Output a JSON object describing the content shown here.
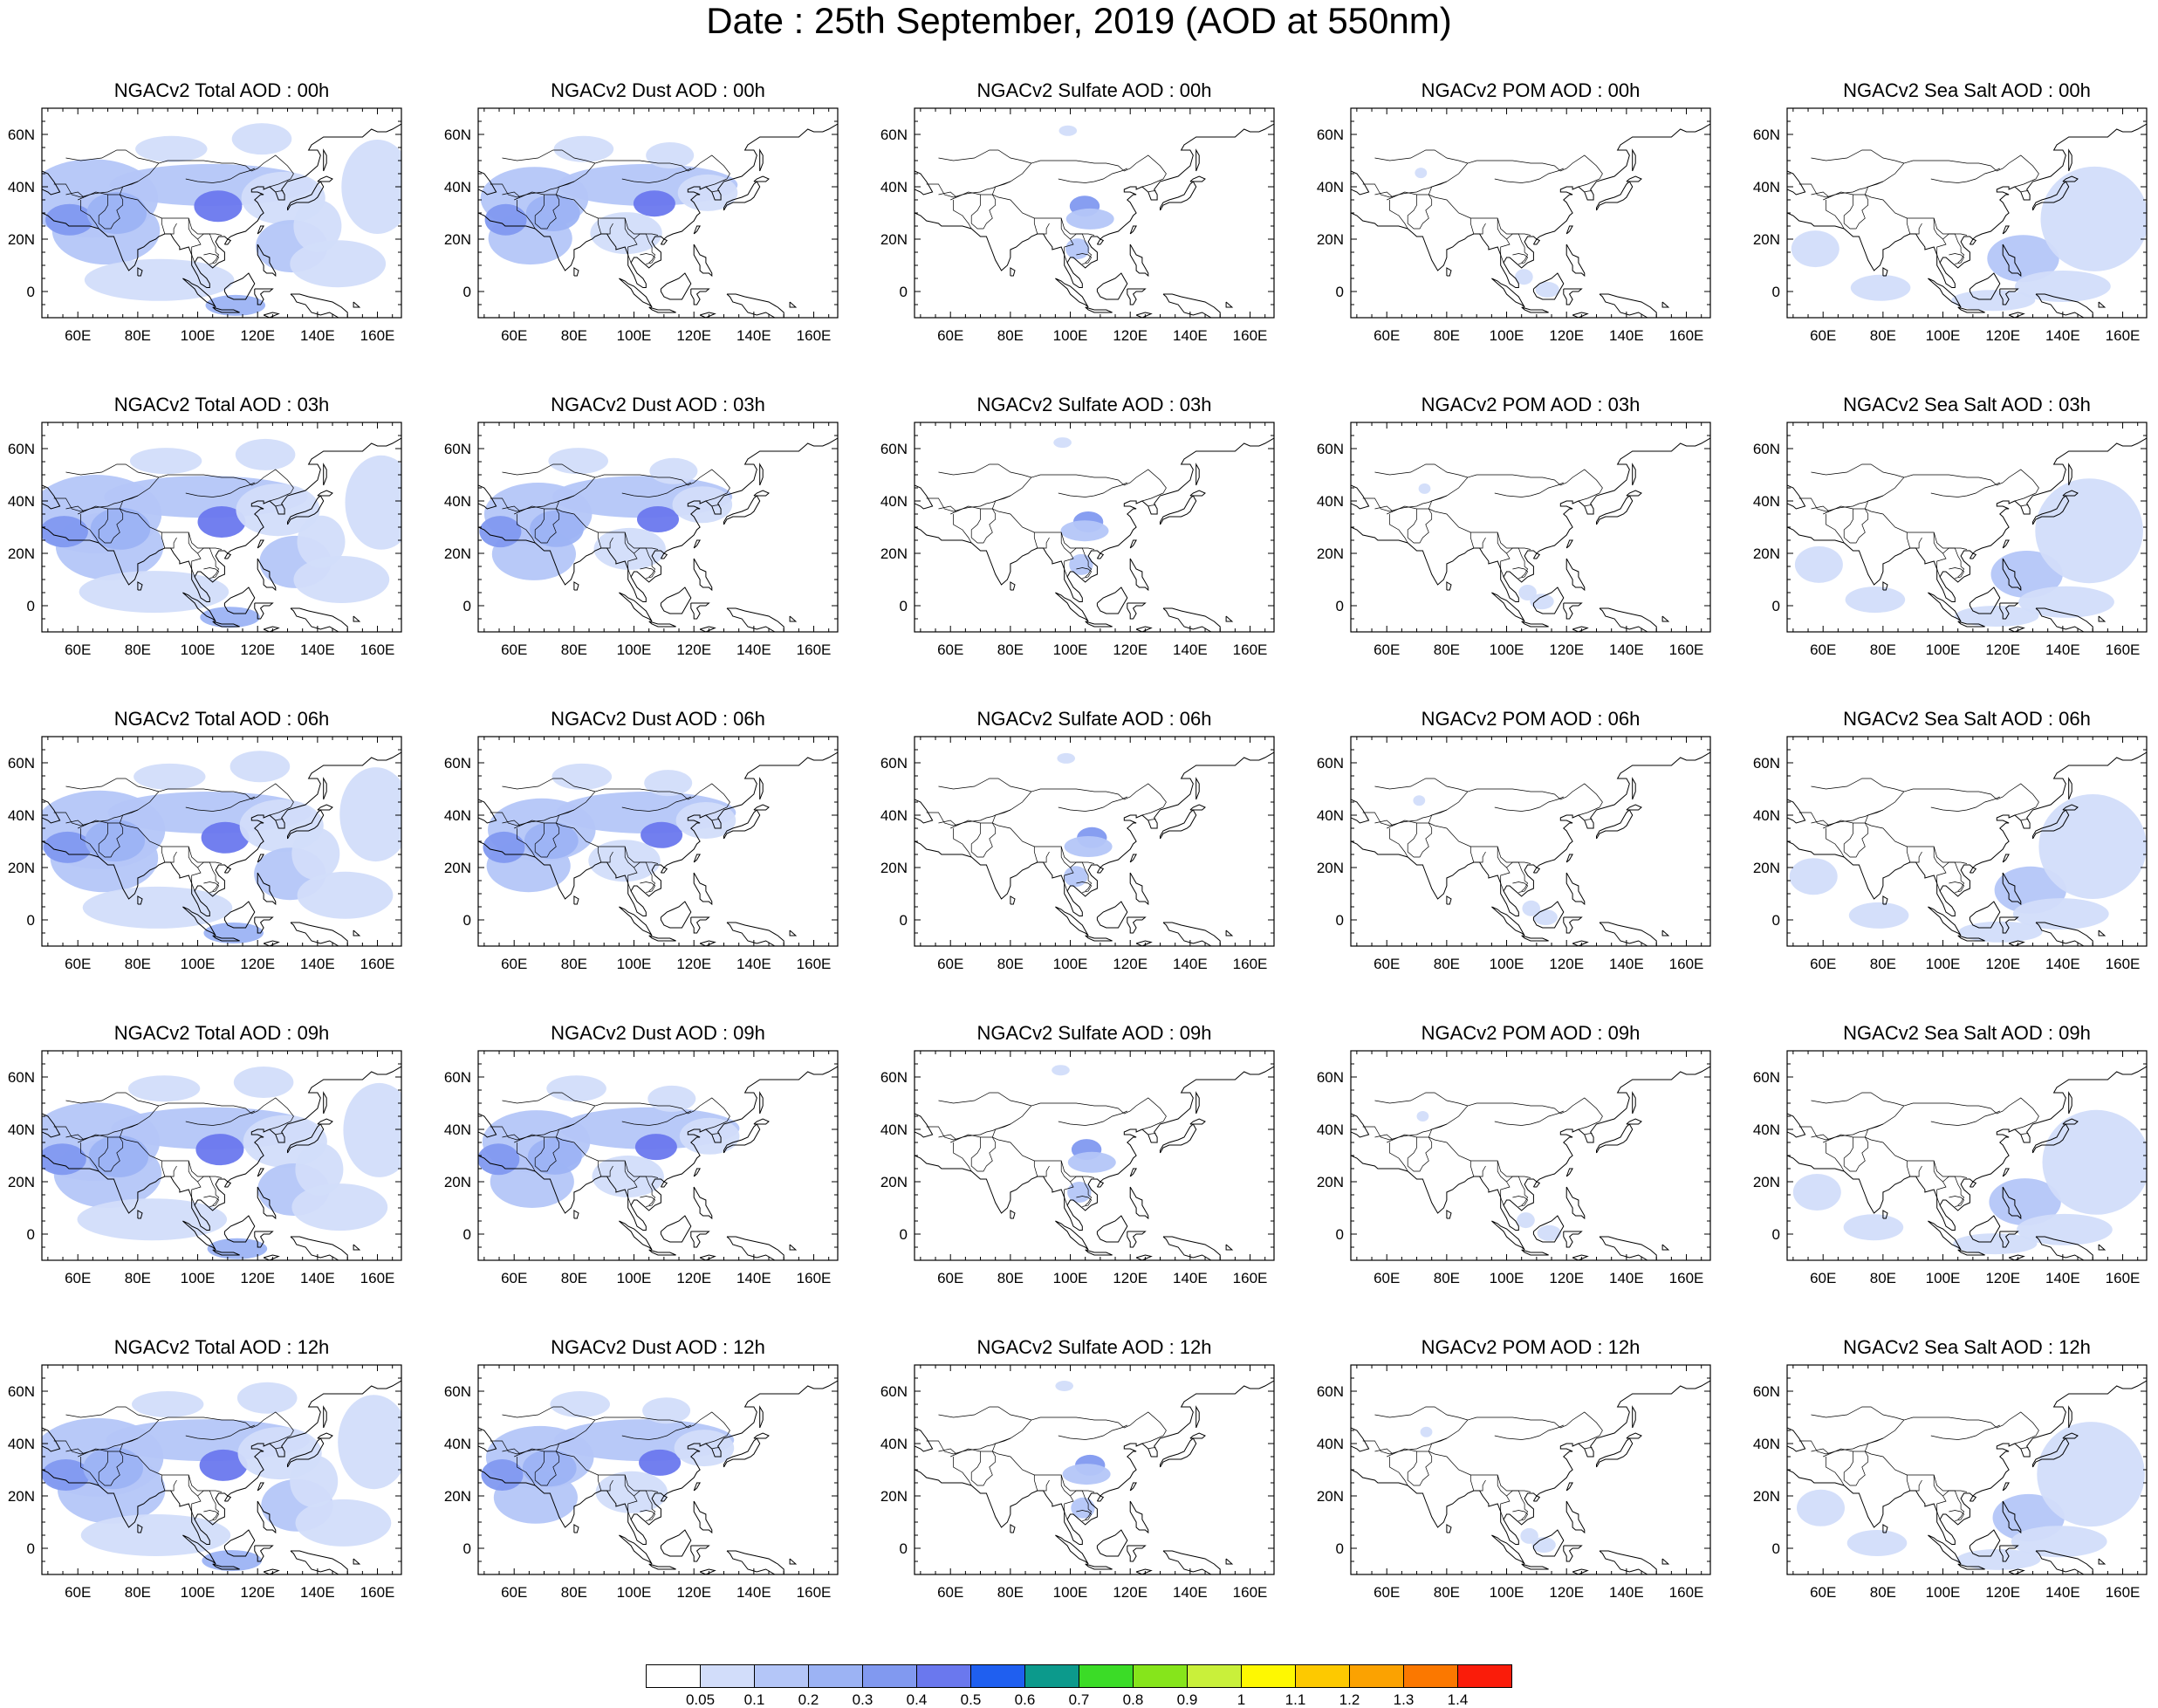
{
  "title": "Date : 25th September, 2019 (AOD at 550nm)",
  "map": {
    "lon_range": [
      48,
      168
    ],
    "lat_range": [
      -10,
      70
    ],
    "x_ticks": [
      "60E",
      "80E",
      "100E",
      "120E",
      "140E",
      "160E"
    ],
    "y_ticks": [
      "60N",
      "40N",
      "20N",
      "0"
    ]
  },
  "columns": [
    {
      "species": "Total"
    },
    {
      "species": "Dust"
    },
    {
      "species": "Sulfate"
    },
    {
      "species": "POM"
    },
    {
      "species": "Sea Salt"
    }
  ],
  "rows": [
    {
      "hour": "00h",
      "titles": [
        "NGACv2 Total AOD : 00h",
        "NGACv2 Dust AOD : 00h",
        "NGACv2 Sulfate AOD : 00h",
        "NGACv2 POM AOD : 00h",
        "NGACv2 Sea Salt AOD : 00h"
      ]
    },
    {
      "hour": "03h",
      "titles": [
        "NGACv2 Total AOD : 03h",
        "NGACv2 Dust AOD : 03h",
        "NGACv2 Sulfate AOD : 03h",
        "NGACv2 POM AOD : 03h",
        "NGACv2 Sea Salt AOD : 03h"
      ]
    },
    {
      "hour": "06h",
      "titles": [
        "NGACv2 Total AOD : 06h",
        "NGACv2 Dust AOD : 06h",
        "NGACv2 Sulfate AOD : 06h",
        "NGACv2 POM AOD : 06h",
        "NGACv2 Sea Salt AOD : 06h"
      ]
    },
    {
      "hour": "09h",
      "titles": [
        "NGACv2 Total AOD : 09h",
        "NGACv2 Dust AOD : 09h",
        "NGACv2 Sulfate AOD : 09h",
        "NGACv2 POM AOD : 09h",
        "NGACv2 Sea Salt  AOD : 09h"
      ]
    },
    {
      "hour": "12h",
      "titles": [
        "NGACv2 Total AOD  : 12h",
        "NGACv2 Dust AOD : 12h",
        "NGACv2 Sulfate AOD : 12h",
        "NGACv2 POM  AOD : 12h",
        "NGACv2 Sea Salt  AOD : 12h"
      ]
    }
  ],
  "colorbar": {
    "labels": [
      "0.05",
      "0.1",
      "0.2",
      "0.3",
      "0.4",
      "0.5",
      "0.6",
      "0.7",
      "0.8",
      "0.9",
      "1",
      "1.1",
      "1.2",
      "1.3",
      "1.4"
    ],
    "colors": [
      "#ffffff",
      "#d2ddfa",
      "#b4c6f8",
      "#9cb3f4",
      "#8199f0",
      "#6a78ee",
      "#1f5ff0",
      "#0c9a8c",
      "#3bdc27",
      "#86e51b",
      "#c9f03a",
      "#fef801",
      "#fdc900",
      "#fba201",
      "#fb7800",
      "#fa1c0a"
    ]
  }
}
